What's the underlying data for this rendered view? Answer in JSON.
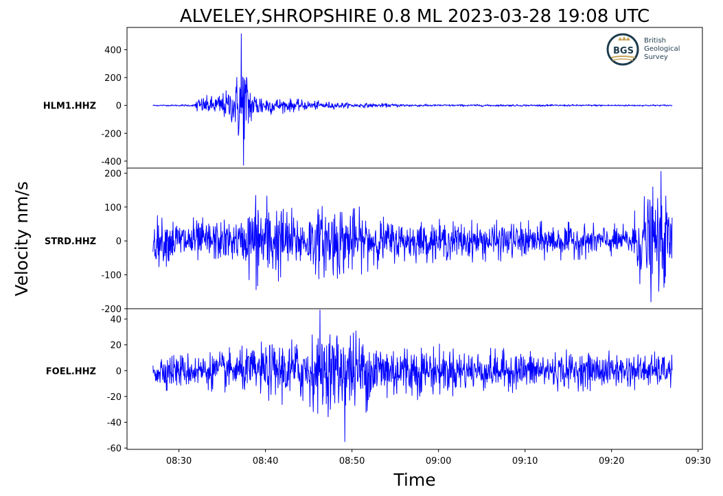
{
  "title": "ALVELEY,SHROPSHIRE 0.8 ML   2023-03-28 19:08 UTC",
  "ylabel": "Velocity nm/s",
  "xlabel": "Time",
  "logo": {
    "abbr": "BGS",
    "line1": "British",
    "line2": "Geological",
    "line3": "Survey",
    "color": "#1d3b4d",
    "accent": "#c8a45a"
  },
  "colors": {
    "trace": "#0000ff",
    "axis": "#000000"
  },
  "chart_data": {
    "type": "line",
    "x_ticks": [
      "08:30",
      "08:40",
      "08:50",
      "09:00",
      "09:10",
      "09:20",
      "09:30"
    ],
    "x_tick_minutes": [
      30,
      40,
      50,
      60,
      70,
      80,
      90
    ],
    "xlim_minutes": [
      24,
      90.5
    ],
    "data_range_minutes": [
      27,
      87
    ],
    "series": [
      {
        "name": "HLM1.HHZ",
        "y_ticks": [
          "400",
          "200",
          "0",
          "-200",
          "-400"
        ],
        "y_tick_values": [
          400,
          200,
          0,
          -200,
          -400
        ],
        "ylim": [
          -450,
          560
        ],
        "envelope": [
          {
            "t": 27,
            "amp": 5
          },
          {
            "t": 29.5,
            "amp": 6
          },
          {
            "t": 31.8,
            "amp": 8
          },
          {
            "t": 32,
            "amp": 60
          },
          {
            "t": 34,
            "amp": 70
          },
          {
            "t": 35.5,
            "amp": 110
          },
          {
            "t": 36.5,
            "amp": 160
          },
          {
            "t": 37.3,
            "amp": 480
          },
          {
            "t": 37.8,
            "amp": 300
          },
          {
            "t": 38.5,
            "amp": 110
          },
          {
            "t": 41,
            "amp": 60
          },
          {
            "t": 45,
            "amp": 35
          },
          {
            "t": 50,
            "amp": 18
          },
          {
            "t": 60,
            "amp": 8
          },
          {
            "t": 87,
            "amp": 6
          }
        ],
        "peak_max": 515,
        "peak_min": -430
      },
      {
        "name": "STRD.HHZ",
        "y_ticks": [
          "200",
          "100",
          "0",
          "-100",
          "-200"
        ],
        "y_tick_values": [
          200,
          100,
          0,
          -100,
          -200
        ],
        "ylim": [
          -200,
          215
        ],
        "envelope": [
          {
            "t": 27,
            "amp": 70
          },
          {
            "t": 37.5,
            "amp": 60
          },
          {
            "t": 38.5,
            "amp": 150
          },
          {
            "t": 40,
            "amp": 140
          },
          {
            "t": 42,
            "amp": 110
          },
          {
            "t": 44,
            "amp": 80
          },
          {
            "t": 48,
            "amp": 120
          },
          {
            "t": 51,
            "amp": 90
          },
          {
            "t": 55,
            "amp": 60
          },
          {
            "t": 70,
            "amp": 55
          },
          {
            "t": 82,
            "amp": 45
          },
          {
            "t": 83.5,
            "amp": 140
          },
          {
            "t": 86,
            "amp": 150
          },
          {
            "t": 87,
            "amp": 90
          }
        ],
        "peak_max": 205,
        "peak_min": -180
      },
      {
        "name": "FOEL.HHZ",
        "y_ticks": [
          "40",
          "20",
          "0",
          "-20",
          "-40",
          "-60"
        ],
        "y_tick_values": [
          40,
          20,
          0,
          -20,
          -40,
          -60
        ],
        "ylim": [
          -61,
          48
        ],
        "envelope": [
          {
            "t": 27,
            "amp": 14
          },
          {
            "t": 33,
            "amp": 14
          },
          {
            "t": 38,
            "amp": 18
          },
          {
            "t": 42,
            "amp": 24
          },
          {
            "t": 46,
            "amp": 30
          },
          {
            "t": 49,
            "amp": 36
          },
          {
            "t": 53,
            "amp": 26
          },
          {
            "t": 58,
            "amp": 20
          },
          {
            "t": 65,
            "amp": 16
          },
          {
            "t": 80,
            "amp": 14
          },
          {
            "t": 87,
            "amp": 13
          }
        ],
        "peak_max": 47,
        "peak_min": -55
      }
    ]
  }
}
